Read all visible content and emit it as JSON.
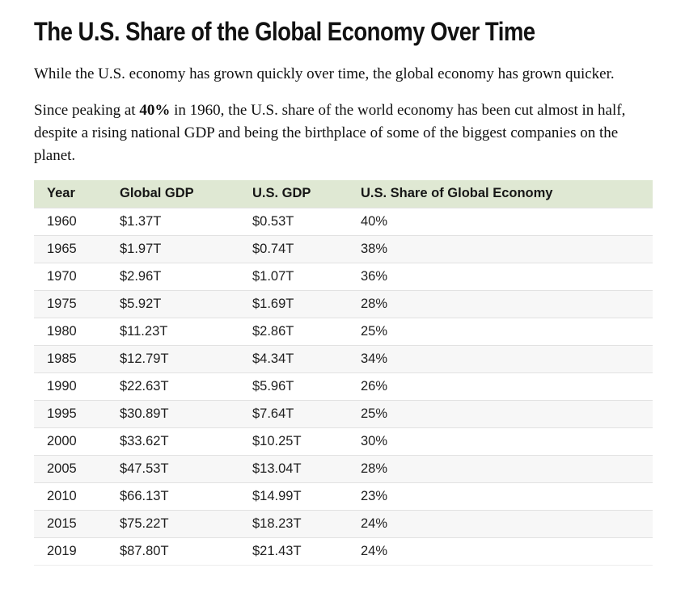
{
  "article": {
    "title": "The U.S. Share of the Global Economy Over Time",
    "paragraph1": "While the U.S. economy has grown quickly over time, the global economy has grown quicker.",
    "paragraph2_before": "Since peaking at ",
    "paragraph2_bold": "40%",
    "paragraph2_after": " in 1960, the U.S. share of the world economy has been cut almost in half, despite a rising national GDP and being the birthplace of some of the biggest companies on the planet."
  },
  "table": {
    "columns": [
      "Year",
      "Global GDP",
      "U.S. GDP",
      "U.S. Share of Global Economy"
    ],
    "rows": [
      [
        "1960",
        "$1.37T",
        "$0.53T",
        "40%"
      ],
      [
        "1965",
        "$1.97T",
        "$0.74T",
        "38%"
      ],
      [
        "1970",
        "$2.96T",
        "$1.07T",
        "36%"
      ],
      [
        "1975",
        "$5.92T",
        "$1.69T",
        "28%"
      ],
      [
        "1980",
        "$11.23T",
        "$2.86T",
        "25%"
      ],
      [
        "1985",
        "$12.79T",
        "$4.34T",
        "34%"
      ],
      [
        "1990",
        "$22.63T",
        "$5.96T",
        "26%"
      ],
      [
        "1995",
        "$30.89T",
        "$7.64T",
        "25%"
      ],
      [
        "2000",
        "$33.62T",
        "$10.25T",
        "30%"
      ],
      [
        "2005",
        "$47.53T",
        "$13.04T",
        "28%"
      ],
      [
        "2010",
        "$66.13T",
        "$14.99T",
        "23%"
      ],
      [
        "2015",
        "$75.22T",
        "$18.23T",
        "24%"
      ],
      [
        "2019",
        "$87.80T",
        "$21.43T",
        "24%"
      ]
    ]
  },
  "chart_data": {
    "type": "table",
    "title": "The U.S. Share of the Global Economy Over Time",
    "columns": [
      "Year",
      "Global GDP",
      "U.S. GDP",
      "U.S. Share of Global Economy"
    ],
    "years": [
      1960,
      1965,
      1970,
      1975,
      1980,
      1985,
      1990,
      1995,
      2000,
      2005,
      2010,
      2015,
      2019
    ],
    "global_gdp_trillions_usd": [
      1.37,
      1.97,
      2.96,
      5.92,
      11.23,
      12.79,
      22.63,
      30.89,
      33.62,
      47.53,
      66.13,
      75.22,
      87.8
    ],
    "us_gdp_trillions_usd": [
      0.53,
      0.74,
      1.07,
      1.69,
      2.86,
      4.34,
      5.96,
      7.64,
      10.25,
      13.04,
      14.99,
      18.23,
      21.43
    ],
    "us_share_percent": [
      40,
      38,
      36,
      28,
      25,
      34,
      26,
      25,
      30,
      28,
      23,
      24,
      24
    ]
  },
  "colors": {
    "header_bg": "#dfe8d3",
    "alt_row_bg": "#f7f7f7",
    "row_border": "#e2e2e2",
    "text": "#1d1d1d"
  }
}
